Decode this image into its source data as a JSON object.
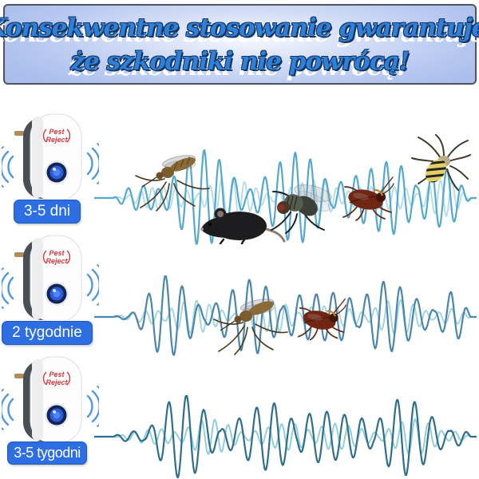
{
  "header": {
    "line1": "Konsekwentne stosowanie gwarantuje,",
    "line2": "że szkodniki nie powrócą!",
    "text_color": "#2f80d9",
    "outline_color": "#16355f",
    "background_color": "#b5c7f0",
    "border_color": "#4f5560"
  },
  "device": {
    "brand_line1": "Pest",
    "brand_line2": "Reject",
    "brand_color": "#d23a42",
    "led_color": "#2b5ce0",
    "arc_color": "#4f97dd",
    "body_color": "#ffffff",
    "back_color": "#4a4e57"
  },
  "badge_style": {
    "background": "#2d6fe3",
    "text_color": "#ffffff"
  },
  "rows": [
    {
      "label": "3-5 dni",
      "pests": [
        "mosquito",
        "mouse",
        "fly",
        "cockroach",
        "spider"
      ],
      "wave": {
        "dark": "#54a8cd",
        "light": "#b7dee8",
        "amp": 55
      }
    },
    {
      "label": "2 tygodnie",
      "pests": [
        "mosquito",
        "cockroach"
      ],
      "wave": {
        "dark": "#4a86ac",
        "light": "#a5d5df",
        "amp": 48
      }
    },
    {
      "label": "3-5 tygodni",
      "pests": [],
      "wave": {
        "dark": "#2f6d8d",
        "light": "#93ced9",
        "amp": 48
      }
    }
  ]
}
